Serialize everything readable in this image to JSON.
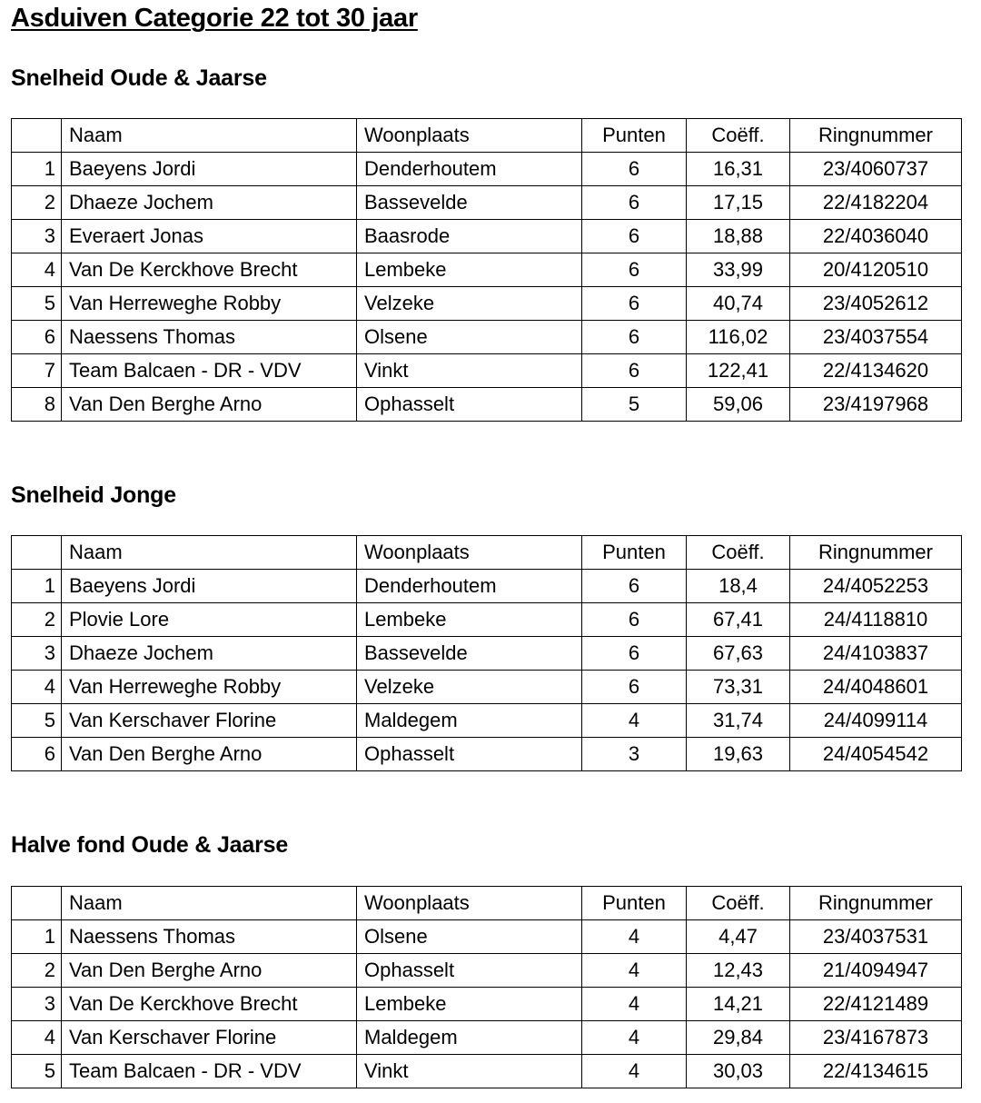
{
  "title": "Asduiven Categorie 22 tot 30 jaar",
  "headers": [
    "",
    "Naam",
    "Woonplaats",
    "Punten",
    "Coëff.",
    "Ringnummer"
  ],
  "sections": [
    {
      "heading": "Snelheid Oude & Jaarse",
      "rows": [
        [
          "1",
          "Baeyens Jordi",
          "Denderhoutem",
          "6",
          "16,31",
          "23/4060737"
        ],
        [
          "2",
          "Dhaeze Jochem",
          "Bassevelde",
          "6",
          "17,15",
          "22/4182204"
        ],
        [
          "3",
          "Everaert Jonas",
          "Baasrode",
          "6",
          "18,88",
          "22/4036040"
        ],
        [
          "4",
          "Van De Kerckhove Brecht",
          "Lembeke",
          "6",
          "33,99",
          "20/4120510"
        ],
        [
          "5",
          "Van Herreweghe Robby",
          "Velzeke",
          "6",
          "40,74",
          "23/4052612"
        ],
        [
          "6",
          "Naessens Thomas",
          "Olsene",
          "6",
          "116,02",
          "23/4037554"
        ],
        [
          "7",
          "Team Balcaen - DR - VDV",
          "Vinkt",
          "6",
          "122,41",
          "22/4134620"
        ],
        [
          "8",
          "Van Den Berghe Arno",
          "Ophasselt",
          "5",
          "59,06",
          "23/4197968"
        ]
      ]
    },
    {
      "heading": "Snelheid Jonge",
      "rows": [
        [
          "1",
          "Baeyens Jordi",
          "Denderhoutem",
          "6",
          "18,4",
          "24/4052253"
        ],
        [
          "2",
          "Plovie Lore",
          "Lembeke",
          "6",
          "67,41",
          "24/4118810"
        ],
        [
          "3",
          "Dhaeze Jochem",
          "Bassevelde",
          "6",
          "67,63",
          "24/4103837"
        ],
        [
          "4",
          "Van Herreweghe Robby",
          "Velzeke",
          "6",
          "73,31",
          "24/4048601"
        ],
        [
          "5",
          "Van Kerschaver Florine",
          "Maldegem",
          "4",
          "31,74",
          "24/4099114"
        ],
        [
          "6",
          "Van Den Berghe Arno",
          "Ophasselt",
          "3",
          "19,63",
          "24/4054542"
        ]
      ]
    },
    {
      "heading": "Halve fond Oude & Jaarse",
      "rows": [
        [
          "1",
          "Naessens Thomas",
          "Olsene",
          "4",
          "4,47",
          "23/4037531"
        ],
        [
          "2",
          "Van Den Berghe Arno",
          "Ophasselt",
          "4",
          "12,43",
          "21/4094947"
        ],
        [
          "3",
          "Van De Kerckhove Brecht",
          "Lembeke",
          "4",
          "14,21",
          "22/4121489"
        ],
        [
          "4",
          "Van Kerschaver Florine",
          "Maldegem",
          "4",
          "29,84",
          "23/4167873"
        ],
        [
          "5",
          "Team Balcaen - DR - VDV",
          "Vinkt",
          "4",
          "30,03",
          "22/4134615"
        ]
      ]
    }
  ]
}
